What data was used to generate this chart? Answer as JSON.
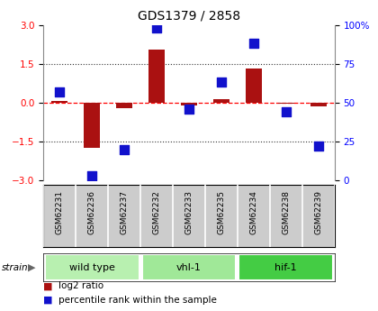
{
  "title": "GDS1379 / 2858",
  "samples": [
    "GSM62231",
    "GSM62236",
    "GSM62237",
    "GSM62232",
    "GSM62233",
    "GSM62235",
    "GSM62234",
    "GSM62238",
    "GSM62239"
  ],
  "log2_ratio": [
    0.05,
    -1.75,
    -0.2,
    2.05,
    -0.1,
    0.15,
    1.3,
    -0.05,
    -0.15
  ],
  "percentile_rank": [
    57,
    3,
    20,
    98,
    46,
    63,
    88,
    44,
    22
  ],
  "groups": [
    {
      "name": "wild type",
      "start": 0,
      "end": 3,
      "color": "#b8f0b0"
    },
    {
      "name": "vhl-1",
      "start": 3,
      "end": 6,
      "color": "#a0e898"
    },
    {
      "name": "hif-1",
      "start": 6,
      "end": 9,
      "color": "#44cc44"
    }
  ],
  "ylim_left": [
    -3,
    3
  ],
  "ylim_right": [
    0,
    100
  ],
  "yticks_left": [
    -3,
    -1.5,
    0,
    1.5,
    3
  ],
  "yticks_right": [
    0,
    25,
    50,
    75,
    100
  ],
  "bar_color": "#aa1111",
  "dot_color": "#1111cc",
  "bar_width": 0.5,
  "dot_size": 45,
  "bg_color": "#ffffff",
  "label_bg": "#cccccc",
  "grid_color": "#333333"
}
